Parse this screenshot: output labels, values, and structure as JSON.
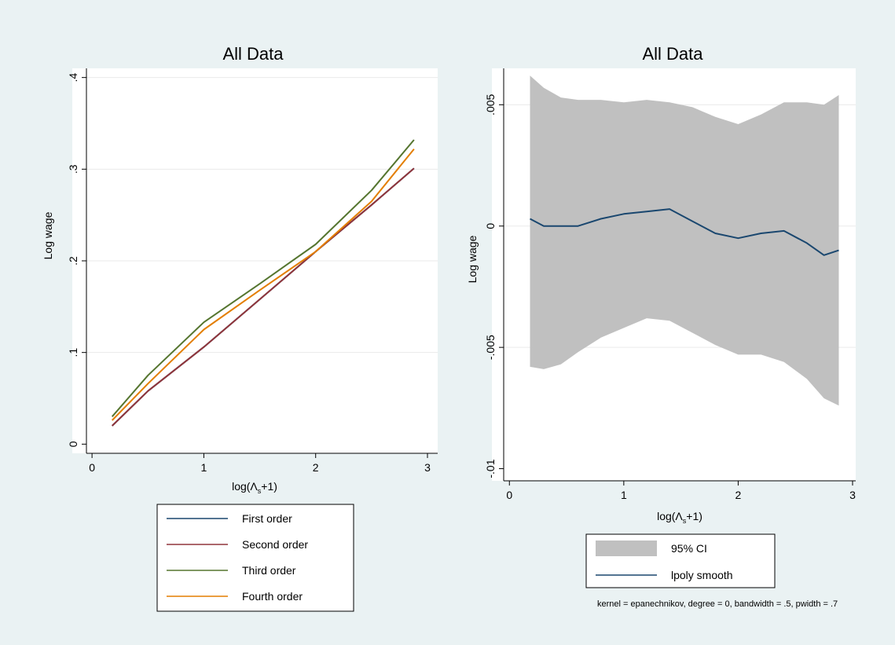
{
  "chart_data": [
    {
      "type": "line",
      "title": "All Data",
      "xlabel": "log(Λs+1)",
      "xlabel_main": "log(Λ",
      "xlabel_sub": "s",
      "xlabel_tail": "+1)",
      "ylabel": "Log wage",
      "xlim": [
        -0.05,
        3.0
      ],
      "ylim": [
        -0.01,
        0.41
      ],
      "xticks": [
        0,
        1,
        2,
        3
      ],
      "xtick_labels": [
        "0",
        "1",
        "2",
        "3"
      ],
      "yticks": [
        0,
        0.1,
        0.2,
        0.3,
        0.4
      ],
      "ytick_labels": [
        "0",
        ".1",
        ".2",
        ".3",
        ".4"
      ],
      "grid": true,
      "legend_position": "bottom",
      "x": [
        0.18,
        0.5,
        1.0,
        1.5,
        2.0,
        2.5,
        2.88
      ],
      "series": [
        {
          "name": "First order",
          "color": "#1a476f",
          "values": [
            0.02,
            0.058,
            0.106,
            0.158,
            0.21,
            0.261,
            0.301
          ]
        },
        {
          "name": "Second order",
          "color": "#90353b",
          "values": [
            0.02,
            0.058,
            0.106,
            0.158,
            0.21,
            0.261,
            0.301
          ]
        },
        {
          "name": "Third order",
          "color": "#55752f",
          "values": [
            0.03,
            0.075,
            0.133,
            0.175,
            0.218,
            0.277,
            0.332
          ]
        },
        {
          "name": "Fourth order",
          "color": "#e37e00",
          "values": [
            0.026,
            0.066,
            0.125,
            0.168,
            0.21,
            0.265,
            0.322
          ]
        }
      ]
    },
    {
      "type": "area",
      "title": "All Data",
      "xlabel": "log(Λs+1)",
      "xlabel_main": "log(Λ",
      "xlabel_sub": "s",
      "xlabel_tail": "+1)",
      "ylabel": "Log wage",
      "xlim": [
        -0.05,
        3.0
      ],
      "ylim": [
        -0.0105,
        0.0065
      ],
      "xticks": [
        0,
        1,
        2,
        3
      ],
      "xtick_labels": [
        "0",
        "1",
        "2",
        "3"
      ],
      "yticks": [
        -0.01,
        -0.005,
        0,
        0.005
      ],
      "ytick_labels": [
        "-.01",
        "-.005",
        "0",
        ".005"
      ],
      "grid": true,
      "legend_position": "bottom",
      "x": [
        0.18,
        0.3,
        0.45,
        0.6,
        0.8,
        1.0,
        1.2,
        1.4,
        1.6,
        1.8,
        2.0,
        2.2,
        2.4,
        2.6,
        2.75,
        2.88
      ],
      "series": [
        {
          "name": "95% CI",
          "color": "#c0c0c0",
          "lower": [
            -0.0058,
            -0.0059,
            -0.0057,
            -0.0052,
            -0.0046,
            -0.0042,
            -0.0038,
            -0.0039,
            -0.0044,
            -0.0049,
            -0.0053,
            -0.0053,
            -0.0056,
            -0.0063,
            -0.0071,
            -0.0074
          ],
          "upper": [
            0.0062,
            0.0057,
            0.0053,
            0.0052,
            0.0052,
            0.0051,
            0.0052,
            0.0051,
            0.0049,
            0.0045,
            0.0042,
            0.0046,
            0.0051,
            0.0051,
            0.005,
            0.0054
          ]
        },
        {
          "name": "lpoly smooth",
          "color": "#1a476f",
          "values": [
            0.0003,
            0.0,
            0.0,
            0.0,
            0.0003,
            0.0005,
            0.0006,
            0.0007,
            0.0002,
            -0.0003,
            -0.0005,
            -0.0003,
            -0.0002,
            -0.0007,
            -0.0012,
            -0.001
          ]
        }
      ],
      "note": "kernel = epanechnikov, degree = 0, bandwidth = .5, pwidth = .7"
    }
  ]
}
